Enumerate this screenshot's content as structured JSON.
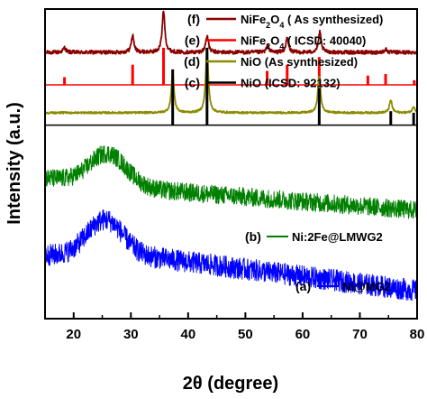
{
  "chart_data": {
    "type": "line",
    "xlabel": "2θ (degree)",
    "ylabel": "Intensity (a.u.)",
    "xlim": [
      15,
      80
    ],
    "x_ticks": [
      "20",
      "30",
      "40",
      "50",
      "60",
      "70",
      "80"
    ],
    "series": [
      {
        "key": "f",
        "marker": "(f)",
        "name": "NiFe₂O₄ ( As synthesized)",
        "color": "#8b0000",
        "style": "line",
        "baseline": 0.86,
        "noise": 0.006,
        "peaks": [
          [
            18.4,
            0.015
          ],
          [
            30.3,
            0.055
          ],
          [
            35.7,
            0.135
          ],
          [
            43.3,
            0.055
          ],
          [
            53.9,
            0.02
          ],
          [
            57.3,
            0.045
          ],
          [
            63.0,
            0.065
          ],
          [
            74.5,
            0.01
          ]
        ]
      },
      {
        "key": "e",
        "marker": "(e)",
        "name": "NiFe₂O₄ ( ICSD: 40040)",
        "color": "#ff0000",
        "style": "sticks",
        "baseline": 0.755,
        "sticks": [
          [
            18.4,
            0.025
          ],
          [
            30.3,
            0.065
          ],
          [
            35.7,
            0.12
          ],
          [
            37.3,
            0.015
          ],
          [
            43.3,
            0.055
          ],
          [
            53.8,
            0.045
          ],
          [
            57.3,
            0.065
          ],
          [
            62.9,
            0.09
          ],
          [
            71.4,
            0.03
          ],
          [
            74.5,
            0.035
          ],
          [
            79.5,
            0.015
          ]
        ]
      },
      {
        "key": "d",
        "marker": "(d)",
        "name": "NiO (As synthesized)",
        "color": "#8b8b00",
        "style": "line",
        "baseline": 0.665,
        "noise": 0.003,
        "peaks": [
          [
            37.3,
            0.13
          ],
          [
            43.3,
            0.205
          ],
          [
            62.9,
            0.12
          ],
          [
            75.4,
            0.04
          ],
          [
            79.4,
            0.02
          ]
        ]
      },
      {
        "key": "c",
        "marker": "(c)",
        "name": "NiO (ICSD: 92132)",
        "color": "#000000",
        "style": "sticks",
        "baseline": 0.625,
        "sticks": [
          [
            37.3,
            0.18
          ],
          [
            43.3,
            0.25
          ],
          [
            62.9,
            0.12
          ],
          [
            75.4,
            0.045
          ],
          [
            79.4,
            0.04
          ]
        ]
      },
      {
        "key": "b",
        "marker": "(b)",
        "name": "Ni:2Fe@LMWG2",
        "color": "#008000",
        "style": "noisy",
        "baseline": 0.435,
        "noise": 0.03,
        "hump": [
          26.0,
          0.1,
          4.5
        ],
        "trend": [
          [
            15,
            0.02
          ],
          [
            35,
            -0.02
          ],
          [
            80,
            -0.085
          ]
        ]
      },
      {
        "key": "a",
        "marker": "(a)",
        "name": "Ni@MG2",
        "color": "#0000ff",
        "style": "noisy",
        "baseline": 0.205,
        "noise": 0.035,
        "hump": [
          25.5,
          0.12,
          4.5
        ],
        "trend": [
          [
            15,
            0.0
          ],
          [
            35,
            -0.01
          ],
          [
            80,
            -0.115
          ]
        ]
      }
    ],
    "legend": [
      {
        "marker": "(f)",
        "label": "NiFe₂O₄ ( As synthesized)",
        "color": "#8b0000"
      },
      {
        "marker": "(e)",
        "label": "NiFe₂O₄ ( ICSD: 40040)",
        "color": "#ff0000"
      },
      {
        "marker": "(d)",
        "label": "NiO (As synthesized)",
        "color": "#8b8b00"
      },
      {
        "marker": "(c)",
        "label": "NiO (ICSD: 92132)",
        "color": "#000000"
      }
    ],
    "inline_labels": [
      {
        "marker": "(b)",
        "label": "Ni:2Fe@LMWG2",
        "color": "#008000"
      },
      {
        "marker": "(a)",
        "label": "Ni@MG2",
        "color": "#0000ff"
      }
    ]
  }
}
